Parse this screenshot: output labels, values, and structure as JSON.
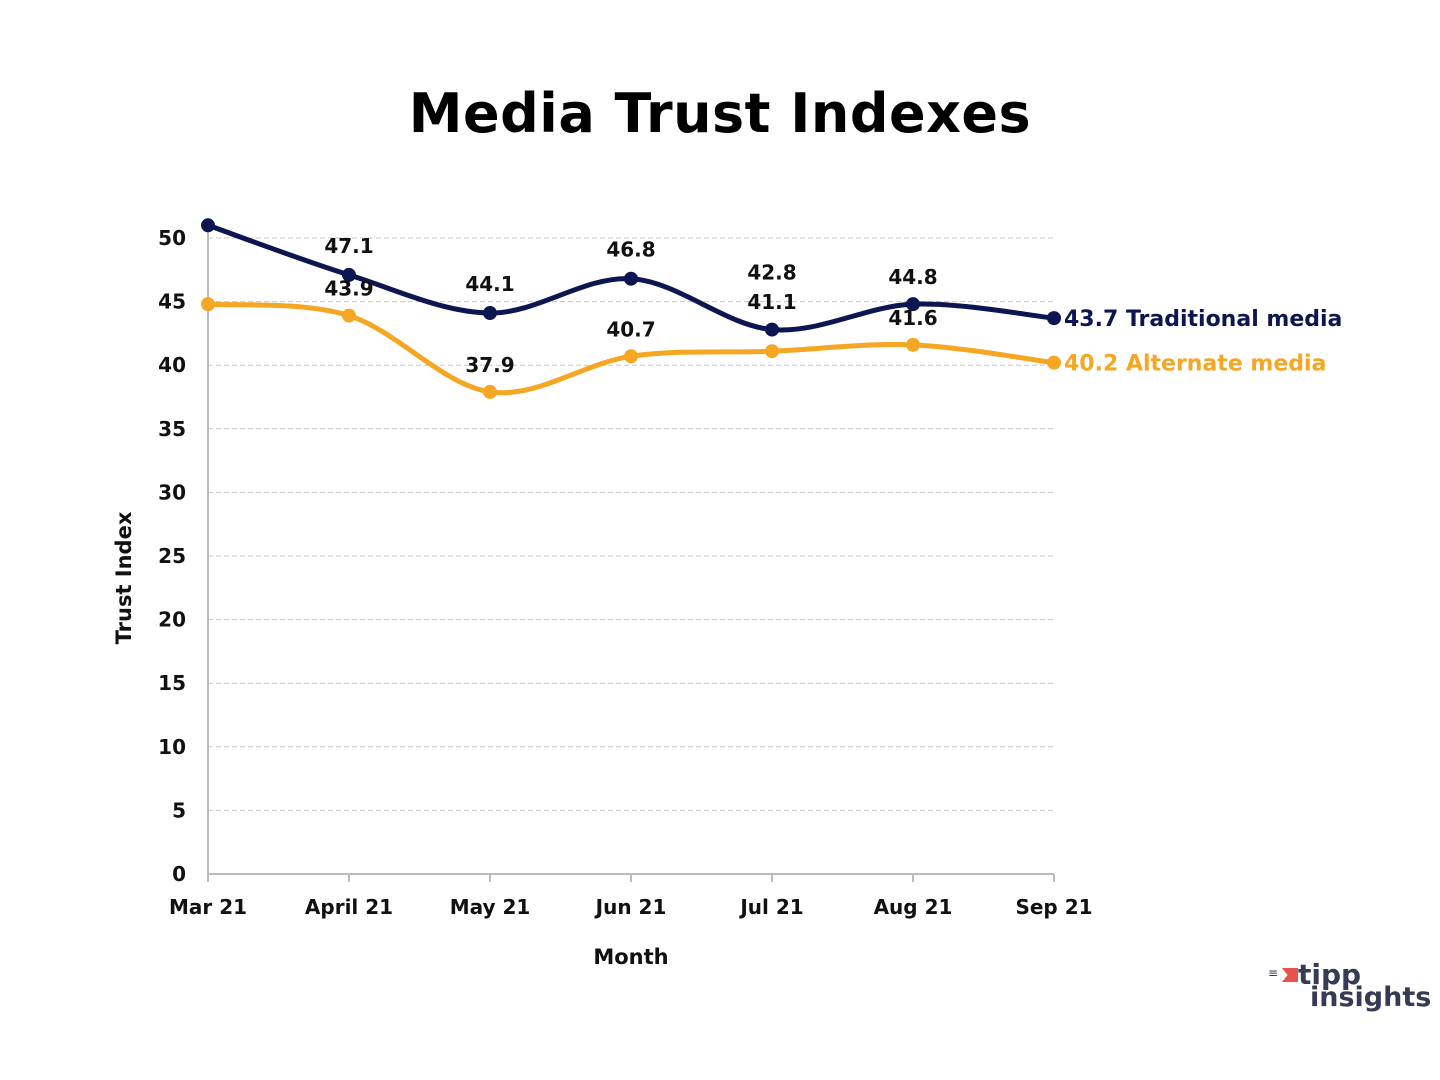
{
  "chart_data": {
    "type": "line",
    "title": "Media Trust Indexes",
    "xlabel": "Month",
    "ylabel": "Trust Index",
    "categories": [
      "Mar 21",
      "April 21",
      "May 21",
      "Jun 21",
      "Jul 21",
      "Aug 21",
      "Sep 21"
    ],
    "ylim": [
      0,
      50
    ],
    "yticks": [
      0,
      5,
      10,
      15,
      20,
      25,
      30,
      35,
      40,
      45,
      50
    ],
    "grid": true,
    "series": [
      {
        "name": "Traditional media",
        "color": "#0d1650",
        "values": [
          51.0,
          47.1,
          44.1,
          46.8,
          42.8,
          44.8,
          43.7
        ],
        "labels": [
          "",
          "47.1",
          "44.1",
          "46.8",
          "42.8",
          "44.8",
          "43.7"
        ],
        "end_label": "43.7 Traditional media"
      },
      {
        "name": "Alternate media",
        "color": "#f5a623",
        "values": [
          44.8,
          43.9,
          37.9,
          40.7,
          41.1,
          41.6,
          40.2
        ],
        "labels": [
          "",
          "43.9",
          "37.9",
          "40.7",
          "41.1",
          "41.6",
          "40.2"
        ],
        "end_label": "40.2 Alternate media"
      }
    ]
  },
  "logo": {
    "line1": "tipp",
    "line2": "insights"
  }
}
